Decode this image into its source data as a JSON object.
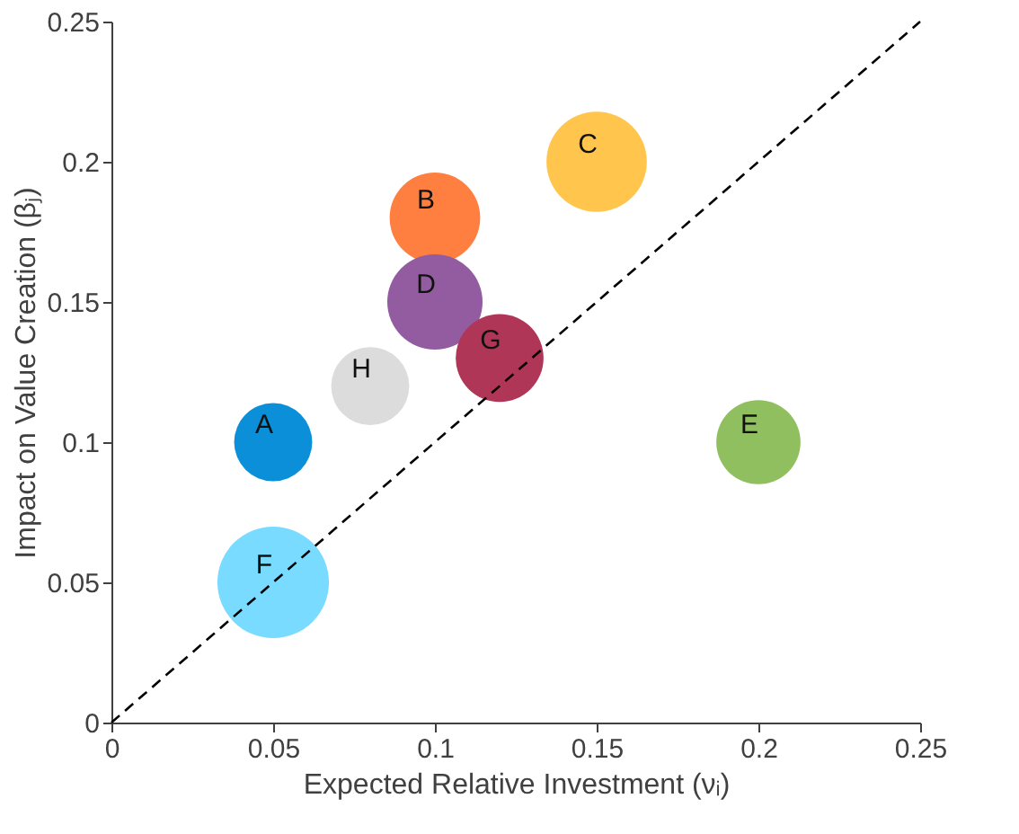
{
  "chart_data": {
    "type": "bubble",
    "xlabel": "Expected Relative Investment (νᵢ)",
    "ylabel": "Impact on Value Creation (βⱼ)",
    "xlim": [
      0,
      0.25
    ],
    "ylim": [
      0,
      0.25
    ],
    "xticks": [
      0,
      0.05,
      0.1,
      0.15,
      0.2,
      0.25
    ],
    "yticks": [
      0,
      0.05,
      0.1,
      0.15,
      0.2,
      0.25
    ],
    "grid": false,
    "legend": false,
    "series": [
      {
        "name": "A",
        "color": "#0a8fd8",
        "x": [
          0.05
        ],
        "values": [
          0.1
        ],
        "sizes": [
          0.49
        ]
      },
      {
        "name": "B",
        "color": "#fe7f40",
        "x": [
          0.1
        ],
        "values": [
          0.18
        ],
        "sizes": [
          0.66
        ]
      },
      {
        "name": "C",
        "color": "#ffc54d",
        "x": [
          0.15
        ],
        "values": [
          0.2
        ],
        "sizes": [
          0.81
        ]
      },
      {
        "name": "D",
        "color": "#945ca0",
        "x": [
          0.1
        ],
        "values": [
          0.15
        ],
        "sizes": [
          0.73
        ]
      },
      {
        "name": "E",
        "color": "#90bf5f",
        "x": [
          0.2
        ],
        "values": [
          0.1
        ],
        "sizes": [
          0.57
        ]
      },
      {
        "name": "F",
        "color": "#79dbff",
        "x": [
          0.05
        ],
        "values": [
          0.05
        ],
        "sizes": [
          1
        ]
      },
      {
        "name": "G",
        "color": "#b03658",
        "x": [
          0.12
        ],
        "values": [
          0.13
        ],
        "sizes": [
          0.62
        ]
      },
      {
        "name": "H",
        "color": "#dcdcdc",
        "x": [
          0.08
        ],
        "values": [
          0.12
        ],
        "sizes": [
          0.49
        ]
      },
      {
        "type": "line",
        "color": "#000000",
        "line_style": "dashed",
        "x": [
          0,
          0.25
        ],
        "values": [
          0,
          0.25
        ]
      }
    ]
  }
}
